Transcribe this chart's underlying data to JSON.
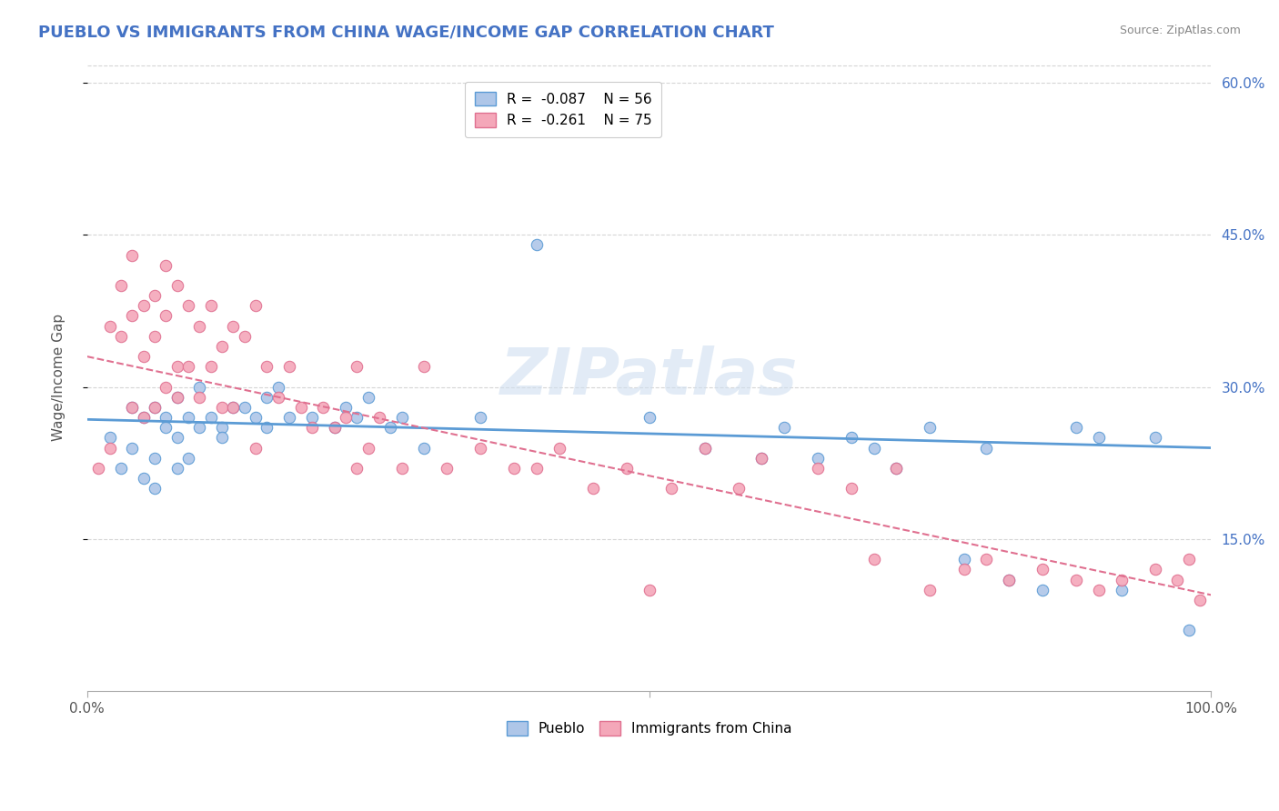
{
  "title": "PUEBLO VS IMMIGRANTS FROM CHINA WAGE/INCOME GAP CORRELATION CHART",
  "source": "Source: ZipAtlas.com",
  "ylabel": "Wage/Income Gap",
  "xmin": 0.0,
  "xmax": 1.0,
  "ymin": 0.0,
  "ymax": 0.62,
  "yticks": [
    0.15,
    0.3,
    0.45,
    0.6
  ],
  "ytick_labels": [
    "15.0%",
    "30.0%",
    "45.0%",
    "60.0%"
  ],
  "legend_label1": "Pueblo",
  "legend_label2": "Immigrants from China",
  "r1": -0.087,
  "n1": 56,
  "r2": -0.261,
  "n2": 75,
  "color_blue": "#aec6e8",
  "color_pink": "#f4a7b9",
  "color_blue_edge": "#5b9bd5",
  "color_pink_edge": "#e07090",
  "color_blue_line": "#5b9bd5",
  "color_pink_line": "#e07090",
  "watermark": "ZIPatlas",
  "blue_dots_x": [
    0.02,
    0.03,
    0.04,
    0.04,
    0.05,
    0.05,
    0.06,
    0.06,
    0.06,
    0.07,
    0.07,
    0.08,
    0.08,
    0.08,
    0.09,
    0.09,
    0.1,
    0.1,
    0.11,
    0.12,
    0.12,
    0.13,
    0.14,
    0.15,
    0.16,
    0.16,
    0.17,
    0.18,
    0.2,
    0.22,
    0.23,
    0.24,
    0.25,
    0.27,
    0.28,
    0.3,
    0.35,
    0.4,
    0.5,
    0.55,
    0.6,
    0.62,
    0.65,
    0.68,
    0.7,
    0.72,
    0.75,
    0.78,
    0.8,
    0.82,
    0.85,
    0.88,
    0.9,
    0.92,
    0.95,
    0.98
  ],
  "blue_dots_y": [
    0.25,
    0.22,
    0.28,
    0.24,
    0.27,
    0.21,
    0.28,
    0.23,
    0.2,
    0.27,
    0.26,
    0.29,
    0.25,
    0.22,
    0.27,
    0.23,
    0.3,
    0.26,
    0.27,
    0.26,
    0.25,
    0.28,
    0.28,
    0.27,
    0.29,
    0.26,
    0.3,
    0.27,
    0.27,
    0.26,
    0.28,
    0.27,
    0.29,
    0.26,
    0.27,
    0.24,
    0.27,
    0.44,
    0.27,
    0.24,
    0.23,
    0.26,
    0.23,
    0.25,
    0.24,
    0.22,
    0.26,
    0.13,
    0.24,
    0.11,
    0.1,
    0.26,
    0.25,
    0.1,
    0.25,
    0.06
  ],
  "pink_dots_x": [
    0.01,
    0.02,
    0.02,
    0.03,
    0.03,
    0.04,
    0.04,
    0.04,
    0.05,
    0.05,
    0.05,
    0.06,
    0.06,
    0.06,
    0.07,
    0.07,
    0.07,
    0.08,
    0.08,
    0.08,
    0.09,
    0.09,
    0.1,
    0.1,
    0.11,
    0.11,
    0.12,
    0.12,
    0.13,
    0.13,
    0.14,
    0.15,
    0.15,
    0.16,
    0.17,
    0.18,
    0.19,
    0.2,
    0.21,
    0.22,
    0.23,
    0.24,
    0.24,
    0.25,
    0.26,
    0.28,
    0.3,
    0.32,
    0.35,
    0.38,
    0.4,
    0.42,
    0.45,
    0.48,
    0.5,
    0.52,
    0.55,
    0.58,
    0.6,
    0.65,
    0.68,
    0.7,
    0.72,
    0.75,
    0.78,
    0.8,
    0.82,
    0.85,
    0.88,
    0.9,
    0.92,
    0.95,
    0.97,
    0.98,
    0.99
  ],
  "pink_dots_y": [
    0.22,
    0.36,
    0.24,
    0.4,
    0.35,
    0.37,
    0.43,
    0.28,
    0.38,
    0.33,
    0.27,
    0.39,
    0.35,
    0.28,
    0.42,
    0.37,
    0.3,
    0.4,
    0.32,
    0.29,
    0.38,
    0.32,
    0.36,
    0.29,
    0.38,
    0.32,
    0.34,
    0.28,
    0.36,
    0.28,
    0.35,
    0.38,
    0.24,
    0.32,
    0.29,
    0.32,
    0.28,
    0.26,
    0.28,
    0.26,
    0.27,
    0.22,
    0.32,
    0.24,
    0.27,
    0.22,
    0.32,
    0.22,
    0.24,
    0.22,
    0.22,
    0.24,
    0.2,
    0.22,
    0.1,
    0.2,
    0.24,
    0.2,
    0.23,
    0.22,
    0.2,
    0.13,
    0.22,
    0.1,
    0.12,
    0.13,
    0.11,
    0.12,
    0.11,
    0.1,
    0.11,
    0.12,
    0.11,
    0.13,
    0.09
  ],
  "blue_line_x": [
    0.0,
    1.0
  ],
  "blue_line_y_start": 0.268,
  "blue_line_y_end": 0.24,
  "pink_line_x": [
    0.0,
    1.0
  ],
  "pink_line_y_start": 0.33,
  "pink_line_y_end": 0.095
}
